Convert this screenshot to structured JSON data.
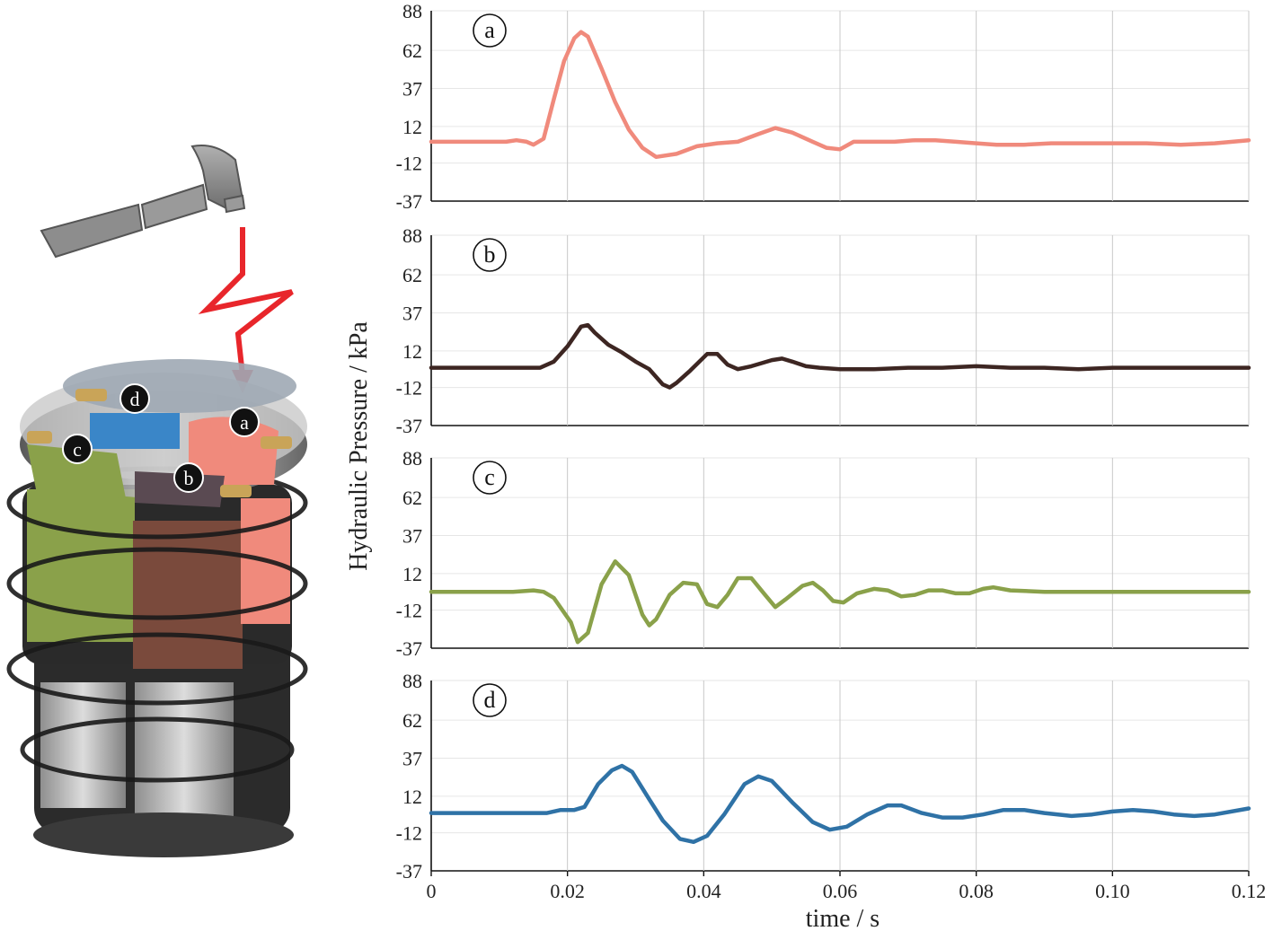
{
  "chart_data": {
    "type": "line",
    "x_label": "time / s",
    "y_label": "Hydraulic Pressure  / kPa",
    "xlim": [
      0,
      0.12
    ],
    "x_ticks": [
      "0",
      "0.02",
      "0.04",
      "0.06",
      "0.08",
      "0.10",
      "0.12"
    ],
    "x_tick_values": [
      0,
      0.02,
      0.04,
      0.06,
      0.08,
      0.1,
      0.12
    ],
    "ylim": [
      -37,
      88
    ],
    "y_ticks": [
      "88",
      "62",
      "37",
      "12",
      "-12",
      "-37"
    ],
    "y_tick_values": [
      88,
      62,
      37,
      12,
      -12,
      -37
    ],
    "grid": true,
    "panels": [
      {
        "label": "a",
        "color": "#f08a7c",
        "points": [
          [
            0,
            2
          ],
          [
            0.011,
            2
          ],
          [
            0.0125,
            3
          ],
          [
            0.014,
            2
          ],
          [
            0.015,
            0
          ],
          [
            0.0165,
            4
          ],
          [
            0.018,
            30
          ],
          [
            0.0195,
            55
          ],
          [
            0.021,
            70
          ],
          [
            0.022,
            74
          ],
          [
            0.023,
            71
          ],
          [
            0.025,
            50
          ],
          [
            0.027,
            28
          ],
          [
            0.029,
            10
          ],
          [
            0.031,
            -2
          ],
          [
            0.033,
            -8
          ],
          [
            0.036,
            -6
          ],
          [
            0.039,
            -1
          ],
          [
            0.042,
            1
          ],
          [
            0.045,
            2
          ],
          [
            0.048,
            7
          ],
          [
            0.0505,
            11
          ],
          [
            0.053,
            8
          ],
          [
            0.056,
            2
          ],
          [
            0.058,
            -2
          ],
          [
            0.06,
            -3
          ],
          [
            0.062,
            2
          ],
          [
            0.065,
            2
          ],
          [
            0.068,
            2
          ],
          [
            0.071,
            3
          ],
          [
            0.074,
            3
          ],
          [
            0.077,
            2
          ],
          [
            0.08,
            1
          ],
          [
            0.083,
            0
          ],
          [
            0.087,
            0
          ],
          [
            0.091,
            1
          ],
          [
            0.095,
            1
          ],
          [
            0.1,
            1
          ],
          [
            0.105,
            1
          ],
          [
            0.11,
            0
          ],
          [
            0.115,
            1
          ],
          [
            0.12,
            3
          ]
        ]
      },
      {
        "label": "b",
        "color": "#3d2622",
        "points": [
          [
            0,
            1
          ],
          [
            0.014,
            1
          ],
          [
            0.016,
            1
          ],
          [
            0.018,
            5
          ],
          [
            0.02,
            15
          ],
          [
            0.022,
            28
          ],
          [
            0.023,
            29
          ],
          [
            0.024,
            24
          ],
          [
            0.026,
            16
          ],
          [
            0.028,
            11
          ],
          [
            0.03,
            5
          ],
          [
            0.032,
            0
          ],
          [
            0.034,
            -10
          ],
          [
            0.035,
            -12
          ],
          [
            0.036,
            -9
          ],
          [
            0.038,
            -1
          ],
          [
            0.0405,
            10
          ],
          [
            0.042,
            10
          ],
          [
            0.0435,
            3
          ],
          [
            0.045,
            0
          ],
          [
            0.047,
            2
          ],
          [
            0.05,
            6
          ],
          [
            0.0515,
            7
          ],
          [
            0.053,
            5
          ],
          [
            0.055,
            2
          ],
          [
            0.057,
            1
          ],
          [
            0.06,
            0
          ],
          [
            0.065,
            0
          ],
          [
            0.07,
            1
          ],
          [
            0.075,
            1
          ],
          [
            0.08,
            2
          ],
          [
            0.085,
            1
          ],
          [
            0.09,
            1
          ],
          [
            0.095,
            0
          ],
          [
            0.1,
            1
          ],
          [
            0.105,
            1
          ],
          [
            0.11,
            1
          ],
          [
            0.115,
            1
          ],
          [
            0.12,
            1
          ]
        ]
      },
      {
        "label": "c",
        "color": "#8aa14a",
        "points": [
          [
            0,
            0
          ],
          [
            0.012,
            0
          ],
          [
            0.015,
            1
          ],
          [
            0.0165,
            0
          ],
          [
            0.018,
            -4
          ],
          [
            0.0205,
            -20
          ],
          [
            0.0215,
            -33
          ],
          [
            0.023,
            -27
          ],
          [
            0.025,
            5
          ],
          [
            0.027,
            20
          ],
          [
            0.029,
            11
          ],
          [
            0.031,
            -15
          ],
          [
            0.032,
            -22
          ],
          [
            0.033,
            -18
          ],
          [
            0.035,
            -2
          ],
          [
            0.037,
            6
          ],
          [
            0.039,
            5
          ],
          [
            0.0405,
            -8
          ],
          [
            0.042,
            -10
          ],
          [
            0.0435,
            -2
          ],
          [
            0.045,
            9
          ],
          [
            0.047,
            9
          ],
          [
            0.049,
            -2
          ],
          [
            0.0505,
            -10
          ],
          [
            0.052,
            -5
          ],
          [
            0.0545,
            4
          ],
          [
            0.056,
            6
          ],
          [
            0.0575,
            1
          ],
          [
            0.059,
            -6
          ],
          [
            0.0605,
            -7
          ],
          [
            0.0625,
            -1
          ],
          [
            0.065,
            2
          ],
          [
            0.067,
            1
          ],
          [
            0.069,
            -3
          ],
          [
            0.071,
            -2
          ],
          [
            0.073,
            1
          ],
          [
            0.075,
            1
          ],
          [
            0.077,
            -1
          ],
          [
            0.079,
            -1
          ],
          [
            0.081,
            2
          ],
          [
            0.0825,
            3
          ],
          [
            0.085,
            1
          ],
          [
            0.09,
            0
          ],
          [
            0.1,
            0
          ],
          [
            0.105,
            0
          ],
          [
            0.11,
            0
          ],
          [
            0.12,
            0
          ]
        ]
      },
      {
        "label": "d",
        "color": "#2f72a6",
        "points": [
          [
            0,
            1
          ],
          [
            0.015,
            1
          ],
          [
            0.017,
            1
          ],
          [
            0.019,
            3
          ],
          [
            0.021,
            3
          ],
          [
            0.0225,
            5
          ],
          [
            0.0245,
            20
          ],
          [
            0.0265,
            29
          ],
          [
            0.028,
            32
          ],
          [
            0.0295,
            28
          ],
          [
            0.032,
            10
          ],
          [
            0.034,
            -4
          ],
          [
            0.0365,
            -16
          ],
          [
            0.0385,
            -18
          ],
          [
            0.0405,
            -14
          ],
          [
            0.043,
            0
          ],
          [
            0.046,
            20
          ],
          [
            0.048,
            25
          ],
          [
            0.05,
            22
          ],
          [
            0.053,
            8
          ],
          [
            0.056,
            -5
          ],
          [
            0.0585,
            -10
          ],
          [
            0.061,
            -8
          ],
          [
            0.064,
            0
          ],
          [
            0.067,
            6
          ],
          [
            0.069,
            6
          ],
          [
            0.072,
            1
          ],
          [
            0.075,
            -2
          ],
          [
            0.078,
            -2
          ],
          [
            0.081,
            0
          ],
          [
            0.084,
            3
          ],
          [
            0.087,
            3
          ],
          [
            0.09,
            1
          ],
          [
            0.094,
            -1
          ],
          [
            0.097,
            0
          ],
          [
            0.1,
            2
          ],
          [
            0.103,
            3
          ],
          [
            0.106,
            2
          ],
          [
            0.109,
            0
          ],
          [
            0.112,
            -1
          ],
          [
            0.115,
            0
          ],
          [
            0.12,
            4
          ]
        ]
      }
    ]
  },
  "device": {
    "chamber_labels": [
      "a",
      "b",
      "c",
      "d"
    ],
    "icons": [
      "hammer-icon",
      "impact-bolt-icon",
      "actuator-stack-illustration"
    ]
  }
}
